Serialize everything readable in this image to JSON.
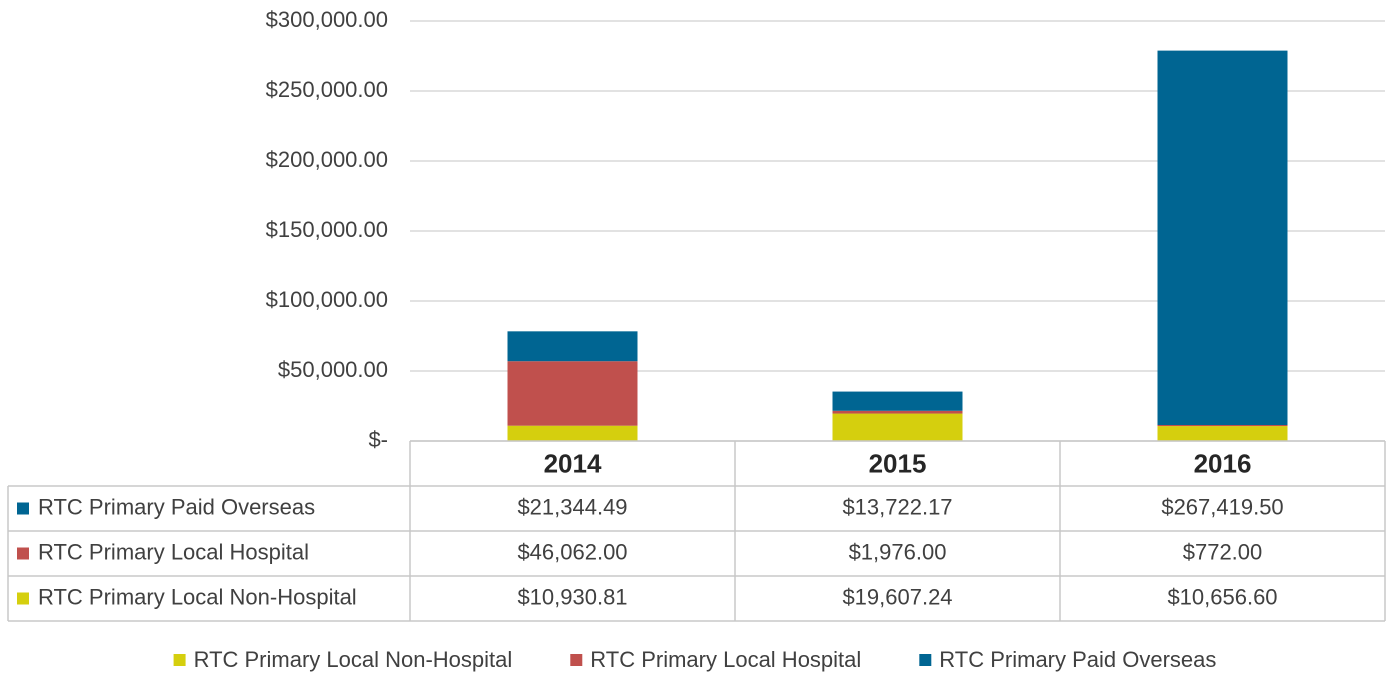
{
  "chart_data": {
    "type": "stacked_bar",
    "categories": [
      "2014",
      "2015",
      "2016"
    ],
    "series": [
      {
        "name": "RTC Primary Local Non-Hospital",
        "color": "#d5cf0e",
        "values": [
          10930.81,
          19607.24,
          10656.6
        ],
        "value_labels": [
          "$10,930.81",
          "$19,607.24",
          "$10,656.60"
        ]
      },
      {
        "name": "RTC Primary Local Hospital",
        "color": "#c0504d",
        "values": [
          46062,
          1976,
          772
        ],
        "value_labels": [
          "$46,062.00",
          "$1,976.00",
          "$772.00"
        ]
      },
      {
        "name": "RTC Primary Paid Overseas",
        "color": "#006592",
        "values": [
          21344.49,
          13722.17,
          267419.5
        ],
        "value_labels": [
          "$21,344.49",
          "$13,722.17",
          "$267,419.50"
        ]
      }
    ],
    "ylim": [
      0,
      300000
    ],
    "yticks": [
      {
        "value": 0,
        "label": "$-"
      },
      {
        "value": 50000,
        "label": "$50,000.00"
      },
      {
        "value": 100000,
        "label": "$100,000.00"
      },
      {
        "value": 150000,
        "label": "$150,000.00"
      },
      {
        "value": 200000,
        "label": "$200,000.00"
      },
      {
        "value": 250000,
        "label": "$250,000.00"
      },
      {
        "value": 300000,
        "label": "$300,000.00"
      }
    ],
    "grid": true,
    "legend": "bottom",
    "data_table": true
  }
}
